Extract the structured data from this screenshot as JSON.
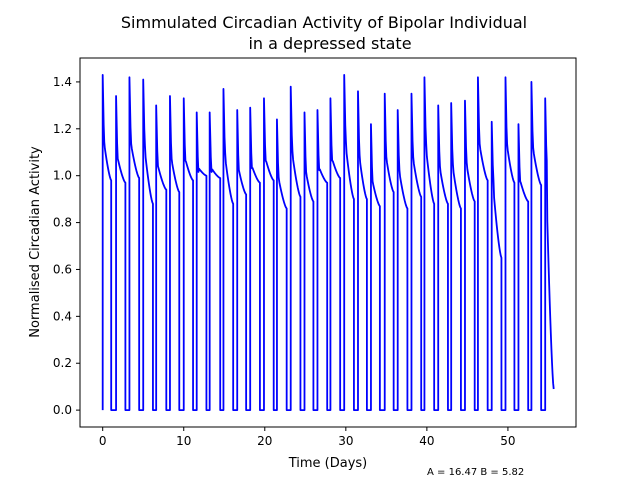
{
  "chart_data": {
    "type": "line",
    "title_lines": [
      "Simmulated Circadian Activity of Bipolar Individual",
      "in a depressed state"
    ],
    "xlabel": "Time (Days)",
    "ylabel": "Normalised Circadian Activity",
    "xlim": [
      -2.8,
      58.4
    ],
    "ylim": [
      -0.072,
      1.502
    ],
    "xticks": [
      0,
      10,
      20,
      30,
      40,
      50
    ],
    "yticks": [
      0.0,
      0.2,
      0.4,
      0.6,
      0.8,
      1.0,
      1.2,
      1.4
    ],
    "grid": false,
    "line_color": "#0000ff",
    "annotation": "A = 16.47 B = 5.82",
    "series": [
      {
        "bursts": [
          {
            "start": 0.0,
            "end": 1.05,
            "peak": 1.43,
            "low": 0.98
          },
          {
            "start": 1.65,
            "end": 2.8,
            "peak": 1.34,
            "low": 0.97
          },
          {
            "start": 3.3,
            "end": 4.5,
            "peak": 1.42,
            "low": 0.99
          },
          {
            "start": 5.0,
            "end": 6.2,
            "peak": 1.41,
            "low": 0.88
          },
          {
            "start": 6.6,
            "end": 7.85,
            "peak": 1.3,
            "low": 0.94
          },
          {
            "start": 8.3,
            "end": 9.45,
            "peak": 1.34,
            "low": 0.93
          },
          {
            "start": 10.0,
            "end": 11.15,
            "peak": 1.33,
            "low": 0.98
          },
          {
            "start": 11.6,
            "end": 12.8,
            "peak": 1.27,
            "low": 1.0
          },
          {
            "start": 13.2,
            "end": 14.5,
            "peak": 1.27,
            "low": 0.99
          },
          {
            "start": 14.9,
            "end": 16.1,
            "peak": 1.37,
            "low": 0.88
          },
          {
            "start": 16.6,
            "end": 17.7,
            "peak": 1.28,
            "low": 0.92
          },
          {
            "start": 18.2,
            "end": 19.4,
            "peak": 1.29,
            "low": 0.97
          },
          {
            "start": 19.9,
            "end": 21.1,
            "peak": 1.33,
            "low": 0.98
          },
          {
            "start": 21.5,
            "end": 22.7,
            "peak": 1.24,
            "low": 0.86
          },
          {
            "start": 23.2,
            "end": 24.4,
            "peak": 1.38,
            "low": 0.91
          },
          {
            "start": 24.9,
            "end": 26.0,
            "peak": 1.27,
            "low": 0.89
          },
          {
            "start": 26.5,
            "end": 27.7,
            "peak": 1.28,
            "low": 0.97
          },
          {
            "start": 28.1,
            "end": 29.3,
            "peak": 1.33,
            "low": 0.99
          },
          {
            "start": 29.8,
            "end": 31.0,
            "peak": 1.43,
            "low": 0.9
          },
          {
            "start": 31.5,
            "end": 32.6,
            "peak": 1.36,
            "low": 0.9
          },
          {
            "start": 33.1,
            "end": 34.2,
            "peak": 1.22,
            "low": 0.87
          },
          {
            "start": 34.8,
            "end": 35.9,
            "peak": 1.35,
            "low": 0.93
          },
          {
            "start": 36.4,
            "end": 37.6,
            "peak": 1.28,
            "low": 0.86
          },
          {
            "start": 38.1,
            "end": 39.3,
            "peak": 1.35,
            "low": 0.91
          },
          {
            "start": 39.7,
            "end": 40.9,
            "peak": 1.42,
            "low": 0.88
          },
          {
            "start": 41.4,
            "end": 42.6,
            "peak": 1.3,
            "low": 0.88
          },
          {
            "start": 43.0,
            "end": 44.2,
            "peak": 1.31,
            "low": 0.86
          },
          {
            "start": 44.7,
            "end": 45.9,
            "peak": 1.32,
            "low": 0.89
          },
          {
            "start": 46.3,
            "end": 47.5,
            "peak": 1.42,
            "low": 0.98
          },
          {
            "start": 48.0,
            "end": 49.2,
            "peak": 1.23,
            "low": 0.65
          },
          {
            "start": 49.7,
            "end": 50.8,
            "peak": 1.42,
            "low": 0.97
          },
          {
            "start": 51.3,
            "end": 52.5,
            "peak": 1.22,
            "low": 0.89
          },
          {
            "start": 52.9,
            "end": 54.1,
            "peak": 1.4,
            "low": 0.96
          },
          {
            "start": 54.6,
            "end": 55.65,
            "peak": 1.33,
            "low": 0.09
          }
        ]
      }
    ]
  }
}
